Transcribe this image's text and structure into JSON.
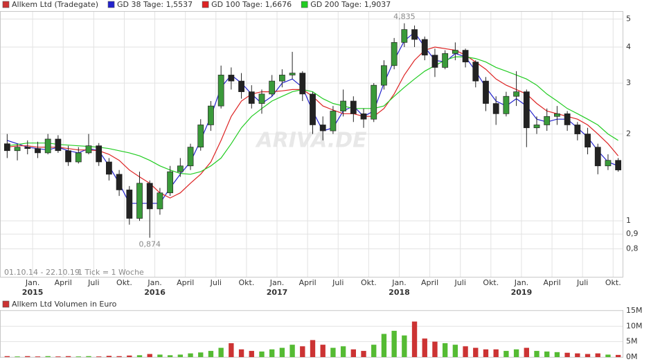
{
  "chart_data": [
    {
      "type": "candlestick",
      "name": "Allkem Ltd (Tradegate)",
      "color": "#cc3333",
      "up_color": "#3a9a3a",
      "down_color": "#222222",
      "log_y": true,
      "grid": true,
      "watermark": "ARIVA.DE",
      "range_label": "01.10.14 - 22.10.19",
      "tick_label": "1 Tick = 1 Woche",
      "xlim": [
        "2014-10",
        "2019-11"
      ],
      "ylim": [
        0.64,
        5.3
      ],
      "yticks": [
        {
          "value": 0.8,
          "label": "0,8"
        },
        {
          "value": 0.9,
          "label": "0,9"
        },
        1,
        2,
        3,
        4,
        5
      ],
      "xticks": [
        {
          "value": "2015-01",
          "label": "Jan."
        },
        {
          "value": "2015-04",
          "label": "April"
        },
        {
          "value": "2015-07",
          "label": "Juli"
        },
        {
          "value": "2015-10",
          "label": "Okt."
        },
        {
          "value": "2016-01",
          "label": "Jan."
        },
        {
          "value": "2016-04",
          "label": "April"
        },
        {
          "value": "2016-07",
          "label": "Juli"
        },
        {
          "value": "2016-10",
          "label": "Okt."
        },
        {
          "value": "2017-01",
          "label": "Jan."
        },
        {
          "value": "2017-04",
          "label": "April"
        },
        {
          "value": "2017-07",
          "label": "Juli"
        },
        {
          "value": "2017-10",
          "label": "Okt."
        },
        {
          "value": "2018-01",
          "label": "Jan."
        },
        {
          "value": "2018-04",
          "label": "April"
        },
        {
          "value": "2018-07",
          "label": "Juli"
        },
        {
          "value": "2018-10",
          "label": "Okt."
        },
        {
          "value": "2019-01",
          "label": "Jan."
        },
        {
          "value": "2019-04",
          "label": "April"
        },
        {
          "value": "2019-07",
          "label": "Juli"
        },
        {
          "value": "2019-10",
          "label": "Okt."
        }
      ],
      "xtick_years": [
        {
          "value": "2015-01",
          "label": "2015"
        },
        {
          "value": "2016-01",
          "label": "2016"
        },
        {
          "value": "2017-01",
          "label": "2017"
        },
        {
          "value": "2018-01",
          "label": "2018"
        },
        {
          "value": "2019-01",
          "label": "2019"
        }
      ],
      "x": [
        "2014-10",
        "2014-11",
        "2014-12",
        "2015-01",
        "2015-02",
        "2015-03",
        "2015-04",
        "2015-05",
        "2015-06",
        "2015-07",
        "2015-08",
        "2015-09",
        "2015-10",
        "2015-11",
        "2015-12",
        "2016-01",
        "2016-02",
        "2016-03",
        "2016-04",
        "2016-05",
        "2016-06",
        "2016-07",
        "2016-08",
        "2016-09",
        "2016-10",
        "2016-11",
        "2016-12",
        "2017-01",
        "2017-02",
        "2017-03",
        "2017-04",
        "2017-05",
        "2017-06",
        "2017-07",
        "2017-08",
        "2017-09",
        "2017-10",
        "2017-11",
        "2017-12",
        "2018-01",
        "2018-02",
        "2018-03",
        "2018-04",
        "2018-05",
        "2018-06",
        "2018-07",
        "2018-08",
        "2018-09",
        "2018-10",
        "2018-11",
        "2018-12",
        "2019-01",
        "2019-02",
        "2019-03",
        "2019-04",
        "2019-05",
        "2019-06",
        "2019-07",
        "2019-08",
        "2019-09",
        "2019-10"
      ],
      "open": [
        1.85,
        1.75,
        1.8,
        1.78,
        1.72,
        1.92,
        1.75,
        1.6,
        1.72,
        1.82,
        1.6,
        1.45,
        1.28,
        1.02,
        1.35,
        1.1,
        1.25,
        1.48,
        1.55,
        1.8,
        2.15,
        2.5,
        3.2,
        3.05,
        2.8,
        2.55,
        2.75,
        3.05,
        3.2,
        3.25,
        2.75,
        2.15,
        2.05,
        2.4,
        2.6,
        2.35,
        2.25,
        2.95,
        3.45,
        4.15,
        4.6,
        4.25,
        3.75,
        3.4,
        3.8,
        3.9,
        3.55,
        3.05,
        2.55,
        2.35,
        2.7,
        2.8,
        2.1,
        2.15,
        2.3,
        2.35,
        2.15,
        2.0,
        1.8,
        1.55,
        1.62
      ],
      "high": [
        2.0,
        1.85,
        1.9,
        1.88,
        2.0,
        1.98,
        1.82,
        1.8,
        2.0,
        1.86,
        1.65,
        1.5,
        1.32,
        1.48,
        1.38,
        1.3,
        1.55,
        1.65,
        1.85,
        2.25,
        2.6,
        3.45,
        3.4,
        3.25,
        2.95,
        2.85,
        3.2,
        3.35,
        3.85,
        3.3,
        2.8,
        2.3,
        2.5,
        2.85,
        2.7,
        2.45,
        3.0,
        3.6,
        4.3,
        4.835,
        4.75,
        4.35,
        3.95,
        3.9,
        4.15,
        3.95,
        3.6,
        3.15,
        2.7,
        2.8,
        3.3,
        2.85,
        2.3,
        2.45,
        2.5,
        2.4,
        2.2,
        2.1,
        1.85,
        1.7,
        1.65
      ],
      "high_value_labels": [
        null,
        null,
        null,
        null,
        null,
        null,
        null,
        null,
        null,
        null,
        null,
        null,
        null,
        null,
        null,
        null,
        null,
        null,
        null,
        null,
        null,
        null,
        null,
        null,
        null,
        null,
        null,
        null,
        null,
        null,
        null,
        null,
        null,
        null,
        null,
        null,
        null,
        null,
        null,
        "4,835",
        null,
        null,
        null,
        null,
        null,
        null,
        null,
        null,
        null,
        null,
        null,
        null,
        null,
        null,
        null,
        null,
        null,
        null,
        null,
        null,
        null
      ],
      "low": [
        1.65,
        1.62,
        1.7,
        1.65,
        1.7,
        1.72,
        1.55,
        1.58,
        1.7,
        1.55,
        1.38,
        1.22,
        0.97,
        1.0,
        0.874,
        1.05,
        1.22,
        1.42,
        1.5,
        1.75,
        2.05,
        2.45,
        2.85,
        2.65,
        2.45,
        2.35,
        2.7,
        2.9,
        3.1,
        2.6,
        2.0,
        1.9,
        2.0,
        2.3,
        2.2,
        2.1,
        2.2,
        2.85,
        3.35,
        4.0,
        4.0,
        3.6,
        3.15,
        3.35,
        3.6,
        3.4,
        2.9,
        2.4,
        2.15,
        2.3,
        2.5,
        1.8,
        2.0,
        2.05,
        2.15,
        2.05,
        1.9,
        1.7,
        1.45,
        1.5,
        1.48
      ],
      "low_value_labels": [
        null,
        null,
        null,
        null,
        null,
        null,
        null,
        null,
        null,
        null,
        null,
        null,
        null,
        null,
        "0,874",
        null,
        null,
        null,
        null,
        null,
        null,
        null,
        null,
        null,
        null,
        null,
        null,
        null,
        null,
        null,
        null,
        null,
        null,
        null,
        null,
        null,
        null,
        null,
        null,
        null,
        null,
        null,
        null,
        null,
        null,
        null,
        null,
        null,
        null,
        null,
        null,
        null,
        null,
        null,
        null,
        null,
        null,
        null,
        null,
        null,
        null
      ],
      "close": [
        1.75,
        1.8,
        1.78,
        1.72,
        1.92,
        1.75,
        1.6,
        1.72,
        1.82,
        1.6,
        1.45,
        1.28,
        1.02,
        1.35,
        1.1,
        1.25,
        1.48,
        1.55,
        1.8,
        2.15,
        2.5,
        3.2,
        3.05,
        2.8,
        2.55,
        2.75,
        3.05,
        3.2,
        3.25,
        2.75,
        2.15,
        2.05,
        2.4,
        2.6,
        2.35,
        2.25,
        2.95,
        3.45,
        4.15,
        4.6,
        4.25,
        3.75,
        3.4,
        3.8,
        3.9,
        3.55,
        3.05,
        2.55,
        2.35,
        2.7,
        2.8,
        2.1,
        2.15,
        2.3,
        2.35,
        2.15,
        2.0,
        1.8,
        1.55,
        1.62,
        1.5
      ],
      "series": [
        {
          "name": "GD 38 Tage: 1,5537",
          "color": "#2222cc",
          "values": [
            1.9,
            1.85,
            1.8,
            1.78,
            1.76,
            1.8,
            1.75,
            1.72,
            1.78,
            1.75,
            1.55,
            1.35,
            1.15,
            1.15,
            1.15,
            1.15,
            1.3,
            1.45,
            1.6,
            1.9,
            2.3,
            2.9,
            3.2,
            3.0,
            2.75,
            2.55,
            2.7,
            3.0,
            3.1,
            2.9,
            2.4,
            2.05,
            2.1,
            2.4,
            2.5,
            2.3,
            2.4,
            3.0,
            3.6,
            4.2,
            4.5,
            4.0,
            3.6,
            3.55,
            3.8,
            3.7,
            3.3,
            2.9,
            2.6,
            2.5,
            2.65,
            2.5,
            2.25,
            2.2,
            2.25,
            2.25,
            2.1,
            1.95,
            1.75,
            1.6,
            1.55
          ]
        },
        {
          "name": "GD 100 Tage: 1,6676",
          "color": "#dd2222",
          "values": [
            1.8,
            1.82,
            1.82,
            1.8,
            1.8,
            1.8,
            1.78,
            1.76,
            1.76,
            1.75,
            1.7,
            1.62,
            1.5,
            1.42,
            1.35,
            1.25,
            1.2,
            1.25,
            1.35,
            1.45,
            1.6,
            1.9,
            2.3,
            2.6,
            2.75,
            2.8,
            2.8,
            2.82,
            2.85,
            2.85,
            2.7,
            2.5,
            2.42,
            2.35,
            2.35,
            2.3,
            2.3,
            2.45,
            2.75,
            3.2,
            3.6,
            3.9,
            4.0,
            3.95,
            3.9,
            3.75,
            3.55,
            3.35,
            3.1,
            2.95,
            2.85,
            2.75,
            2.55,
            2.4,
            2.35,
            2.3,
            2.25,
            2.15,
            2.0,
            1.85,
            1.68
          ]
        },
        {
          "name": "GD 200 Tage: 1,9037",
          "color": "#22cc22",
          "values": [
            1.82,
            1.84,
            1.86,
            1.86,
            1.86,
            1.84,
            1.83,
            1.82,
            1.81,
            1.8,
            1.78,
            1.75,
            1.72,
            1.68,
            1.62,
            1.55,
            1.5,
            1.46,
            1.45,
            1.48,
            1.55,
            1.65,
            1.85,
            2.1,
            2.3,
            2.45,
            2.6,
            2.7,
            2.8,
            2.85,
            2.8,
            2.65,
            2.55,
            2.5,
            2.45,
            2.45,
            2.45,
            2.5,
            2.7,
            2.9,
            3.1,
            3.3,
            3.45,
            3.6,
            3.7,
            3.7,
            3.65,
            3.55,
            3.4,
            3.3,
            3.2,
            3.1,
            2.95,
            2.75,
            2.6,
            2.45,
            2.35,
            2.25,
            2.15,
            2.0,
            1.9
          ]
        }
      ]
    },
    {
      "type": "bar",
      "title": "Allkem Ltd Volumen in Euro",
      "color": "#cc3333",
      "up_color": "#55bb33",
      "down_color": "#cc3333",
      "grid": true,
      "xlim": [
        "2014-10",
        "2019-11"
      ],
      "ylim": [
        0,
        15
      ],
      "yticks": [
        {
          "value": 0,
          "label": "0M"
        },
        {
          "value": 5,
          "label": "5M"
        },
        {
          "value": 10,
          "label": "10M"
        },
        {
          "value": 15,
          "label": "15M"
        }
      ],
      "x": [
        "2014-10",
        "2014-11",
        "2014-12",
        "2015-01",
        "2015-02",
        "2015-03",
        "2015-04",
        "2015-05",
        "2015-06",
        "2015-07",
        "2015-08",
        "2015-09",
        "2015-10",
        "2015-11",
        "2015-12",
        "2016-01",
        "2016-02",
        "2016-03",
        "2016-04",
        "2016-05",
        "2016-06",
        "2016-07",
        "2016-08",
        "2016-09",
        "2016-10",
        "2016-11",
        "2016-12",
        "2017-01",
        "2017-02",
        "2017-03",
        "2017-04",
        "2017-05",
        "2017-06",
        "2017-07",
        "2017-08",
        "2017-09",
        "2017-10",
        "2017-11",
        "2017-12",
        "2018-01",
        "2018-02",
        "2018-03",
        "2018-04",
        "2018-05",
        "2018-06",
        "2018-07",
        "2018-08",
        "2018-09",
        "2018-10",
        "2018-11",
        "2018-12",
        "2019-01",
        "2019-02",
        "2019-03",
        "2019-04",
        "2019-05",
        "2019-06",
        "2019-07",
        "2019-08",
        "2019-09",
        "2019-10"
      ],
      "values": [
        0.3,
        0.2,
        0.3,
        0.2,
        0.3,
        0.2,
        0.3,
        0.2,
        0.3,
        0.2,
        0.4,
        0.3,
        0.5,
        0.6,
        1.0,
        0.8,
        0.6,
        0.8,
        1.2,
        1.5,
        2.0,
        3.0,
        4.5,
        2.5,
        2.0,
        1.8,
        2.5,
        3.0,
        4.0,
        3.5,
        5.5,
        4.0,
        3.0,
        3.5,
        2.5,
        2.0,
        4.0,
        7.5,
        8.5,
        7.0,
        11.5,
        6.0,
        5.0,
        4.5,
        4.0,
        3.5,
        3.0,
        2.5,
        2.5,
        2.0,
        2.5,
        3.0,
        2.0,
        1.8,
        1.6,
        1.4,
        1.2,
        1.0,
        1.2,
        0.8,
        0.7
      ]
    }
  ]
}
